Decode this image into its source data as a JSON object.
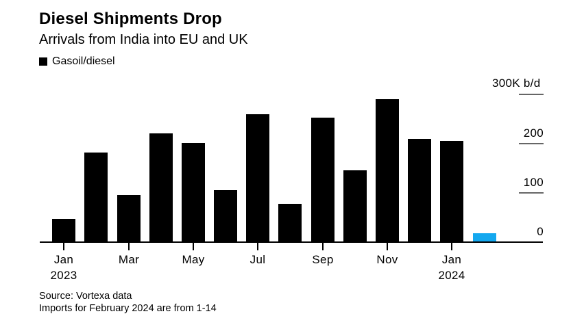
{
  "header": {
    "title": "Diesel Shipments Drop",
    "subtitle": "Arrivals from India into EU and UK",
    "legend": {
      "label": "Gasoil/diesel",
      "color": "#000000"
    }
  },
  "chart_data": {
    "type": "bar",
    "title": "Diesel Shipments Drop",
    "subtitle": "Arrivals from India into EU and UK",
    "series_name": "Gasoil/diesel",
    "unit": "K b/d",
    "categories": [
      "Jan 2023",
      "Feb 2023",
      "Mar 2023",
      "Apr 2023",
      "May 2023",
      "Jun 2023",
      "Jul 2023",
      "Aug 2023",
      "Sep 2023",
      "Oct 2023",
      "Nov 2023",
      "Dec 2023",
      "Jan 2024",
      "Feb 2024"
    ],
    "values": [
      46,
      181,
      95,
      219,
      200,
      104,
      258,
      77,
      252,
      144,
      289,
      209,
      204,
      16
    ],
    "highlight_index": 13,
    "ylim": [
      0,
      300
    ],
    "yticks": [
      {
        "value": 0,
        "label": "0"
      },
      {
        "value": 100,
        "label": "100"
      },
      {
        "value": 200,
        "label": "200"
      },
      {
        "value": 300,
        "label": "300K b/d"
      }
    ],
    "xticks": [
      {
        "index": 0,
        "label": "Jan",
        "year": "2023"
      },
      {
        "index": 2,
        "label": "Mar"
      },
      {
        "index": 4,
        "label": "May"
      },
      {
        "index": 6,
        "label": "Jul"
      },
      {
        "index": 8,
        "label": "Sep"
      },
      {
        "index": 10,
        "label": "Nov"
      },
      {
        "index": 12,
        "label": "Jan",
        "year": "2024"
      }
    ],
    "legend_position": "top-left",
    "grid": "right-side tick segments only"
  },
  "colors": {
    "bar": "#000000",
    "highlight": "#14a8ef",
    "axis": "#000000",
    "tick": "#666666",
    "text": "#000000",
    "background": "#ffffff"
  },
  "footer": {
    "source": "Source: Vortexa data",
    "note": "Imports for February 2024 are from 1-14"
  }
}
